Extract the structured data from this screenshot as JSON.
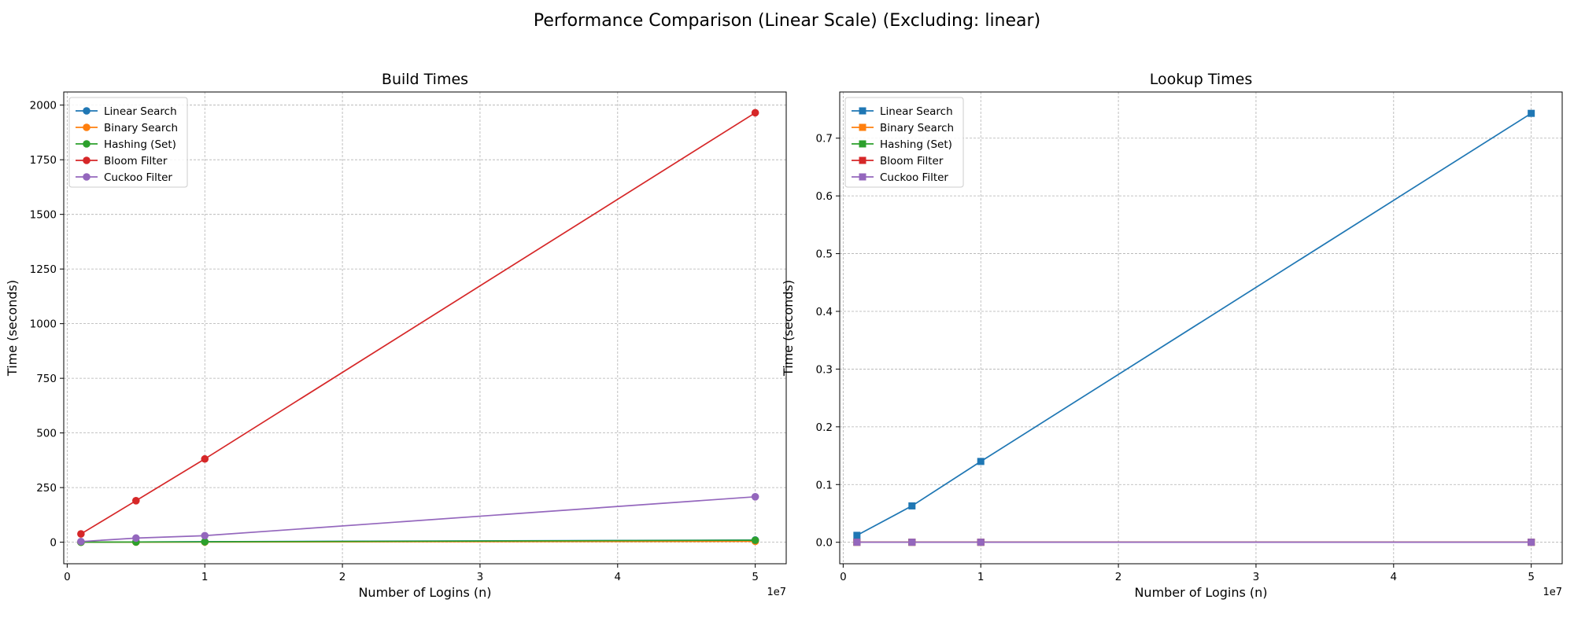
{
  "figure": {
    "title": "Performance Comparison (Linear Scale) (Excluding: linear)"
  },
  "chart_data": [
    {
      "type": "line",
      "title": "Build Times",
      "xlabel": "Number of Logins (n)",
      "ylabel": "Time (seconds)",
      "x_offset_text": "1e7",
      "x": [
        1000000,
        5000000,
        10000000,
        50000000
      ],
      "xlim": [
        -250000,
        52250000
      ],
      "ylim": [
        -98.5,
        2060
      ],
      "xticks": [
        0,
        10000000,
        20000000,
        30000000,
        40000000,
        50000000
      ],
      "xtick_labels": [
        "0",
        "1",
        "2",
        "3",
        "4",
        "5"
      ],
      "yticks": [
        0,
        250,
        500,
        750,
        1000,
        1250,
        1500,
        1750,
        2000
      ],
      "ytick_labels": [
        "0",
        "250",
        "500",
        "750",
        "1000",
        "1250",
        "1500",
        "1750",
        "2000"
      ],
      "grid": true,
      "legend_position": "top-left",
      "marker": "circle",
      "series": [
        {
          "name": "Linear Search",
          "color": "#1f77b4",
          "values": [
            0.3,
            1.2,
            2.2,
            10
          ]
        },
        {
          "name": "Binary Search",
          "color": "#ff7f0e",
          "values": [
            0.1,
            0.4,
            0.8,
            4
          ]
        },
        {
          "name": "Hashing (Set)",
          "color": "#2ca02c",
          "values": [
            0.2,
            0.9,
            1.7,
            9
          ]
        },
        {
          "name": "Bloom Filter",
          "color": "#d62728",
          "values": [
            38,
            190,
            381,
            1965
          ]
        },
        {
          "name": "Cuckoo Filter",
          "color": "#9467bd",
          "values": [
            3,
            19,
            30,
            208
          ]
        }
      ]
    },
    {
      "type": "line",
      "title": "Lookup Times",
      "xlabel": "Number of Logins (n)",
      "ylabel": "Time (seconds)",
      "x_offset_text": "1e7",
      "x": [
        1000000,
        5000000,
        10000000,
        50000000
      ],
      "xlim": [
        -250000,
        52250000
      ],
      "ylim": [
        -0.0372,
        0.78
      ],
      "xticks": [
        0,
        10000000,
        20000000,
        30000000,
        40000000,
        50000000
      ],
      "xtick_labels": [
        "0",
        "1",
        "2",
        "3",
        "4",
        "5"
      ],
      "yticks": [
        0,
        0.1,
        0.2,
        0.3,
        0.4,
        0.5,
        0.6,
        0.7
      ],
      "ytick_labels": [
        "0.0",
        "0.1",
        "0.2",
        "0.3",
        "0.4",
        "0.5",
        "0.6",
        "0.7"
      ],
      "grid": true,
      "legend_position": "top-left",
      "marker": "square",
      "series": [
        {
          "name": "Linear Search",
          "color": "#1f77b4",
          "values": [
            0.012,
            0.063,
            0.14,
            0.743
          ]
        },
        {
          "name": "Binary Search",
          "color": "#ff7f0e",
          "values": [
            0.0001,
            0.0001,
            0.0001,
            0.0001
          ]
        },
        {
          "name": "Hashing (Set)",
          "color": "#2ca02c",
          "values": [
            0.0001,
            0.0001,
            0.0001,
            0.0001
          ]
        },
        {
          "name": "Bloom Filter",
          "color": "#d62728",
          "values": [
            0.0001,
            0.0001,
            0.0001,
            0.0001
          ]
        },
        {
          "name": "Cuckoo Filter",
          "color": "#9467bd",
          "values": [
            0.0001,
            0.0001,
            0.0001,
            0.0001
          ]
        }
      ]
    }
  ]
}
